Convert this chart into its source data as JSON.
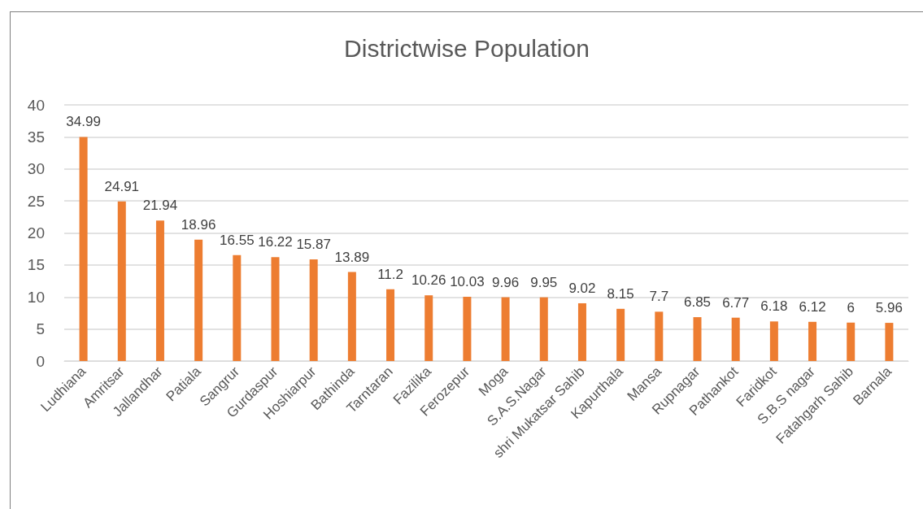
{
  "chart_data": {
    "type": "bar",
    "title": "Districtwise Population",
    "categories": [
      "Ludhiana",
      "Amritsar",
      "Jallandhar",
      "Patiala",
      "Sangrur",
      "Gurdaspur",
      "Hoshiarpur",
      "Bathinda",
      "Tarntaran",
      "Fazilika",
      "Ferozepur",
      "Moga",
      "S.A.S.Nagar",
      "shri Mukatsar Sahib",
      "Kapurthala",
      "Mansa",
      "Rupnagar",
      "Pathankot",
      "Faridkot",
      "S.B.S nagar",
      "Fatahgarh Sahib",
      "Barnala"
    ],
    "values": [
      34.99,
      24.91,
      21.94,
      18.96,
      16.55,
      16.22,
      15.87,
      13.89,
      11.2,
      10.26,
      10.03,
      9.96,
      9.95,
      9.02,
      8.15,
      7.7,
      6.85,
      6.77,
      6.18,
      6.12,
      6,
      5.96
    ],
    "color": "#ed7d31",
    "ylim": [
      0,
      40
    ],
    "yticks": [
      0,
      5,
      10,
      15,
      20,
      25,
      30,
      35,
      40
    ],
    "grid": "y",
    "data_labels": true
  }
}
